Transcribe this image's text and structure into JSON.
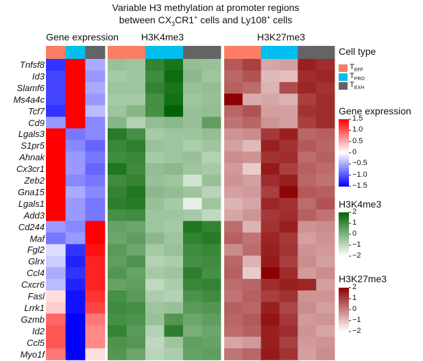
{
  "chart_data": {
    "type": "heatmap",
    "title_parts": {
      "line1": "Variable H3 methylation at promoter regions",
      "line2_a": "between CX",
      "line2_sub": "3",
      "line2_b": "CR1",
      "line2_sup": "+",
      "line2_c": " cells and Ly108",
      "line2_sup2": "+",
      "line2_d": " cells"
    },
    "panels": [
      {
        "key": "gene_expression",
        "label": "Gene expression",
        "columns": 3
      },
      {
        "key": "h3k4me3",
        "label": "H3K4me3",
        "columns": 6
      },
      {
        "key": "h3k27me3",
        "label": "H3K27me3",
        "columns": 6
      }
    ],
    "cell_type_annotation": {
      "gene_expression": [
        "TEFF",
        "TPRO",
        "TEXH"
      ],
      "h3k4me3": [
        "TEFF",
        "TEFF",
        "TPRO",
        "TPRO",
        "TEXH",
        "TEXH"
      ],
      "h3k27me3": [
        "TEFF",
        "TEFF",
        "TPRO",
        "TPRO",
        "TEXH",
        "TEXH"
      ]
    },
    "genes": [
      "Tnfsf8",
      "Id3",
      "Slamf6",
      "Ms4a4c",
      "Tcf7",
      "Cd9",
      "Lgals3",
      "S1pr5",
      "Ahnak",
      "Cx3cr1",
      "Zeb2",
      "Gna15",
      "Lgals1",
      "Add3",
      "Cd244",
      "Maf",
      "Fgl2",
      "Glrx",
      "Ccl4",
      "Cxcr6",
      "Fasl",
      "Lrrk1",
      "Gzmb",
      "Id2",
      "Ccl5",
      "Myo1f"
    ],
    "values": {
      "gene_expression": [
        [
          -1.2,
          1.5,
          -0.5
        ],
        [
          -1.1,
          1.5,
          -0.6
        ],
        [
          -1.1,
          1.5,
          -0.5
        ],
        [
          -1.1,
          1.5,
          -0.6
        ],
        [
          -1.2,
          1.5,
          -0.4
        ],
        [
          -0.6,
          1.5,
          -0.7
        ],
        [
          1.5,
          -0.8,
          -0.7
        ],
        [
          1.5,
          -0.7,
          -0.9
        ],
        [
          1.5,
          -0.6,
          -0.8
        ],
        [
          1.5,
          -0.6,
          -0.9
        ],
        [
          1.5,
          -0.7,
          -0.8
        ],
        [
          1.5,
          -0.5,
          -0.7
        ],
        [
          1.5,
          -0.6,
          -0.8
        ],
        [
          1.5,
          -0.6,
          -0.8
        ],
        [
          -0.6,
          -0.7,
          1.5
        ],
        [
          -0.8,
          -0.6,
          1.5
        ],
        [
          -0.2,
          -1.2,
          1.4
        ],
        [
          -0.3,
          -1.3,
          1.3
        ],
        [
          -0.5,
          -1.2,
          1.3
        ],
        [
          -0.4,
          -1.3,
          1.3
        ],
        [
          0.2,
          -1.4,
          1.2
        ],
        [
          0.3,
          -1.4,
          1.1
        ],
        [
          0.9,
          -1.5,
          0.8
        ],
        [
          1.0,
          -1.5,
          0.7
        ],
        [
          1.0,
          -1.5,
          0.7
        ],
        [
          0.8,
          -1.5,
          0.2
        ]
      ],
      "h3k4me3": [
        [
          -0.4,
          -0.5,
          1.2,
          1.6,
          -0.3,
          -0.4
        ],
        [
          -0.6,
          -0.5,
          1.0,
          1.8,
          -0.2,
          -0.5
        ],
        [
          -0.5,
          -0.5,
          1.2,
          1.6,
          -0.4,
          -0.3
        ],
        [
          -0.6,
          -0.6,
          0.9,
          1.7,
          -0.5,
          -0.4
        ],
        [
          -0.5,
          -0.1,
          0.9,
          2.0,
          -0.4,
          -0.3
        ],
        [
          -0.1,
          -0.8,
          -0.3,
          -0.2,
          -0.4,
          0.5
        ],
        [
          1.4,
          0.9,
          -0.6,
          -0.5,
          -0.5,
          -0.3
        ],
        [
          1.1,
          1.3,
          -0.4,
          -0.5,
          -0.7,
          -0.5
        ],
        [
          1.0,
          1.1,
          -0.6,
          -0.5,
          -0.4,
          -0.8
        ],
        [
          1.5,
          1.0,
          -0.3,
          -0.2,
          -0.5,
          -0.6
        ],
        [
          1.0,
          1.2,
          -0.4,
          -0.5,
          -1.3,
          -0.4
        ],
        [
          1.2,
          1.5,
          -0.2,
          -0.3,
          -0.5,
          -0.9
        ],
        [
          1.3,
          1.4,
          -0.4,
          -0.6,
          -1.6,
          -0.5
        ],
        [
          0.9,
          1.0,
          -0.5,
          -0.5,
          -0.6,
          -1.0
        ],
        [
          0.4,
          0.3,
          -0.5,
          -0.6,
          1.5,
          1.2
        ],
        [
          0.3,
          0.5,
          -0.2,
          -0.5,
          1.2,
          1.4
        ],
        [
          0.6,
          0.3,
          -0.6,
          -0.4,
          1.0,
          1.1
        ],
        [
          0.5,
          0.8,
          -0.8,
          -0.7,
          0.9,
          1.0
        ],
        [
          0.7,
          0.4,
          -0.6,
          -0.5,
          1.3,
          0.9
        ],
        [
          0.4,
          0.5,
          -1.0,
          -0.7,
          1.1,
          1.2
        ],
        [
          0.9,
          0.6,
          -0.7,
          -0.8,
          0.8,
          1.0
        ],
        [
          1.0,
          0.9,
          -0.5,
          -0.4,
          0.6,
          0.7
        ],
        [
          0.9,
          0.8,
          -0.4,
          0.7,
          0.3,
          0.5
        ],
        [
          1.2,
          0.6,
          -0.8,
          1.3,
          0.1,
          0.3
        ],
        [
          0.8,
          0.7,
          -1.0,
          -0.5,
          0.5,
          0.4
        ],
        [
          0.7,
          0.3,
          -0.9,
          -0.7,
          0.4,
          0.5
        ]
      ],
      "h3k27me3": [
        [
          0.6,
          1.0,
          -0.6,
          -0.5,
          1.5,
          1.3
        ],
        [
          0.4,
          0.7,
          -0.9,
          -1.0,
          1.3,
          1.4
        ],
        [
          0.5,
          0.3,
          -0.8,
          0.8,
          1.4,
          1.2
        ],
        [
          2.0,
          -0.7,
          -0.6,
          -0.8,
          1.0,
          1.3
        ],
        [
          0.4,
          0.7,
          -0.5,
          -0.5,
          1.2,
          1.3
        ],
        [
          0.2,
          0.4,
          -0.3,
          -0.5,
          1.0,
          1.3
        ],
        [
          -0.3,
          -0.2,
          1.1,
          1.5,
          0.4,
          0.5
        ],
        [
          -0.5,
          -0.9,
          1.5,
          1.2,
          0.6,
          0.4
        ],
        [
          -0.2,
          -0.3,
          1.2,
          1.3,
          0.3,
          0.5
        ],
        [
          -0.4,
          -1.2,
          1.6,
          1.0,
          0.5,
          0.3
        ],
        [
          -0.3,
          -0.5,
          1.3,
          1.5,
          0.4,
          0.2
        ],
        [
          -0.5,
          -0.4,
          1.0,
          1.9,
          0.6,
          0.5
        ],
        [
          -0.8,
          -0.6,
          1.4,
          1.2,
          0.3,
          0.7
        ],
        [
          -0.6,
          -0.3,
          1.1,
          1.3,
          0.5,
          0.2
        ],
        [
          0.3,
          -0.8,
          1.2,
          1.5,
          -0.3,
          -0.2
        ],
        [
          0.5,
          0.2,
          1.4,
          1.1,
          -0.5,
          -0.3
        ],
        [
          -0.2,
          0.3,
          1.5,
          1.2,
          -0.3,
          -0.4
        ],
        [
          0.4,
          -0.8,
          1.6,
          1.0,
          -0.2,
          -0.5
        ],
        [
          0.5,
          -1.2,
          2.0,
          1.3,
          -0.4,
          -0.2
        ],
        [
          0.3,
          0.4,
          1.3,
          1.5,
          1.4,
          -0.5
        ],
        [
          0.2,
          0.5,
          1.0,
          1.2,
          -0.3,
          -0.3
        ],
        [
          0.5,
          0.4,
          1.5,
          0.9,
          -0.2,
          -0.5
        ],
        [
          0.4,
          0.6,
          1.7,
          1.1,
          -0.4,
          -0.3
        ],
        [
          0.3,
          0.5,
          1.5,
          1.3,
          -0.3,
          -0.6
        ],
        [
          -0.6,
          -0.4,
          1.5,
          1.0,
          -0.4,
          -0.3
        ],
        [
          0.2,
          0.4,
          1.6,
          1.2,
          -0.5,
          -0.2
        ]
      ]
    },
    "legends": {
      "cell_type": {
        "title": "Cell type",
        "items": [
          {
            "key": "TEFF",
            "main": "T",
            "sub": "EFF",
            "color": "#FA7D64"
          },
          {
            "key": "TPRO",
            "main": "T",
            "sub": "PRO",
            "color": "#00BEF0"
          },
          {
            "key": "TEXH",
            "main": "T",
            "sub": "EXH",
            "color": "#646464"
          }
        ]
      },
      "gene_expression": {
        "title": "Gene expression",
        "ticks": [
          "1.5",
          "1.0",
          "0.5",
          "0",
          "−0.5",
          "−1.0",
          "−1.5"
        ],
        "range": [
          -1.5,
          1.5
        ],
        "low_color": "#0000FF",
        "mid_color": "#FFFFFF",
        "high_color": "#FF0000"
      },
      "h3k4me3": {
        "title": "H3K4me3",
        "ticks": [
          "2",
          "1",
          "0",
          "−1",
          "−2"
        ],
        "range": [
          -2,
          2
        ],
        "low_color": "#FFFFFF",
        "high_color": "#006400"
      },
      "h3k27me3": {
        "title": "H3K27me3",
        "ticks": [
          "2",
          "1",
          "0",
          "−1",
          "−2"
        ],
        "range": [
          -2,
          2
        ],
        "low_color": "#FFFFFF",
        "high_color": "#8B0000"
      }
    }
  }
}
